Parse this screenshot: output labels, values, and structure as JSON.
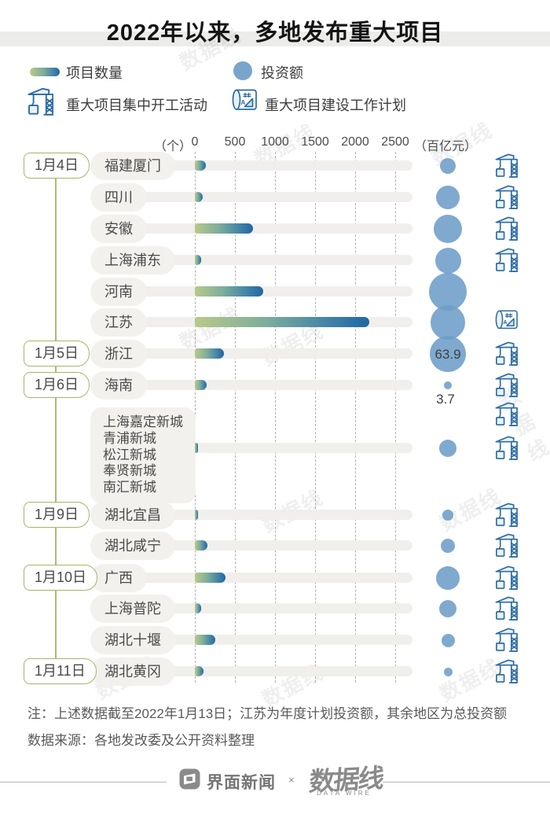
{
  "title": "2022年以来，多地发布重大项目",
  "legend": {
    "bar_label": "项目数量",
    "circle_label": "投资额",
    "crane_label": "重大项目集中开工活动",
    "plan_label": "重大项目建设工作计划"
  },
  "axis": {
    "left_unit": "（个）",
    "ticks": [
      "0",
      "500",
      "1000",
      "1500",
      "2000",
      "2500"
    ],
    "right_unit": "（百亿元）"
  },
  "colors": {
    "bar_gradient_start": "#b9c98a",
    "bar_gradient_end": "#1f67a2",
    "bubble_blue": "#79a5cb",
    "icon_blue": "#2b6ca3",
    "timeline_green": "#a3b766",
    "pill_gray": "#f2f1ee"
  },
  "rows": [
    {
      "date": "1月4日",
      "region": "福建厦门",
      "bubble_d": 20,
      "icons": [
        "crane"
      ]
    },
    {
      "region": "四川",
      "bubble_d": 30,
      "icons": [
        "crane"
      ]
    },
    {
      "region": "安徽",
      "bubble_d": 36,
      "icons": [
        "crane"
      ]
    },
    {
      "region": "上海浦东",
      "bubble_d": 33,
      "icons": [
        "crane"
      ]
    },
    {
      "region": "河南",
      "bubble_d": 48,
      "icons": []
    },
    {
      "region": "江苏",
      "bubble_d": 44,
      "icons": [
        "plan"
      ]
    },
    {
      "date": "1月5日",
      "region": "浙江",
      "bubble_d": 46,
      "value_in": "63.9",
      "icons": [
        "crane"
      ]
    },
    {
      "date": "1月6日",
      "region": "海南",
      "bubble_d": 10,
      "value_below": "3.7",
      "icons": [
        "crane"
      ]
    },
    {
      "region_lines": [
        "上海嘉定新城",
        "青浦新城",
        "松江新城",
        "奉贤新城",
        "南汇新城"
      ],
      "bubble_d": 22,
      "icons": [
        "crane",
        "crane"
      ]
    },
    {
      "date": "1月9日",
      "region": "湖北宜昌",
      "bubble_d": 14,
      "icons": [
        "crane"
      ]
    },
    {
      "region": "湖北咸宁",
      "bubble_d": 18,
      "icons": [
        "crane"
      ]
    },
    {
      "date": "1月10日",
      "region": "广西",
      "bubble_d": 30,
      "icons": [
        "crane"
      ]
    },
    {
      "region": "上海普陀",
      "bubble_d": 22,
      "icons": [
        "crane"
      ]
    },
    {
      "region": "湖北十堰",
      "bubble_d": 17,
      "icons": [
        "crane"
      ]
    },
    {
      "date": "1月11日",
      "region": "湖北黄冈",
      "bubble_d": 11,
      "icons": [
        "crane"
      ]
    }
  ],
  "chart_data": {
    "type": "bar",
    "orientation": "horizontal",
    "title": "2022年以来，多地发布重大项目",
    "categories": [
      "福建厦门",
      "四川",
      "安徽",
      "上海浦东",
      "河南",
      "江苏",
      "浙江",
      "海南",
      "上海嘉定新城/青浦新城/松江新城/奉贤新城/南汇新城",
      "湖北宜昌",
      "湖北咸宁",
      "广西",
      "上海普陀",
      "湖北十堰",
      "湖北黄冈"
    ],
    "dates": [
      "1月4日",
      "1月4日",
      "1月4日",
      "1月4日",
      "1月4日",
      "1月4日",
      "1月5日",
      "1月6日",
      "1月6日",
      "1月9日",
      "1月9日",
      "1月10日",
      "1月10日",
      "1月10日",
      "1月11日"
    ],
    "series": [
      {
        "name": "项目数量",
        "unit": "个",
        "values": [
          140,
          100,
          730,
          80,
          850,
          2180,
          358,
          151,
          40,
          20,
          155,
          385,
          75,
          250,
          110
        ],
        "note": "estimated from bar lengths against axis"
      },
      {
        "name": "投资额",
        "unit": "百亿元",
        "values": [
          13,
          28,
          41,
          32,
          72,
          61,
          63.9,
          3.7,
          15,
          6,
          10,
          28,
          15,
          9,
          4
        ],
        "labeled_values": {
          "浙江": 63.9,
          "海南": 3.7
        },
        "note": "bubble area encoded; only 浙江 and 海南 carry printed labels"
      }
    ],
    "row_markers": [
      [
        "crane"
      ],
      [
        "crane"
      ],
      [
        "crane"
      ],
      [
        "crane"
      ],
      [],
      [
        "plan"
      ],
      [
        "crane"
      ],
      [
        "crane"
      ],
      [
        "crane",
        "crane"
      ],
      [
        "crane"
      ],
      [
        "crane"
      ],
      [
        "crane"
      ],
      [
        "crane"
      ],
      [
        "crane"
      ],
      [
        "crane"
      ]
    ],
    "marker_legend": {
      "crane": "重大项目集中开工活动",
      "plan": "重大项目建设工作计划"
    },
    "xlim": [
      0,
      2500
    ],
    "x_ticks": [
      0,
      500,
      1000,
      1500,
      2000,
      2500
    ],
    "grid": "vertical dashed",
    "legend_position": "top"
  },
  "notes": {
    "note": "注：上述数据截至2022年1月13日；江苏为年度计划投资额，其余地区为总投资额",
    "source": "数据来源：各地发改委及公开资料整理"
  },
  "footer": {
    "brand1": "界面新闻",
    "separator": "×",
    "logo_text": "数据线",
    "logo_sub": "DATA WIRE"
  }
}
